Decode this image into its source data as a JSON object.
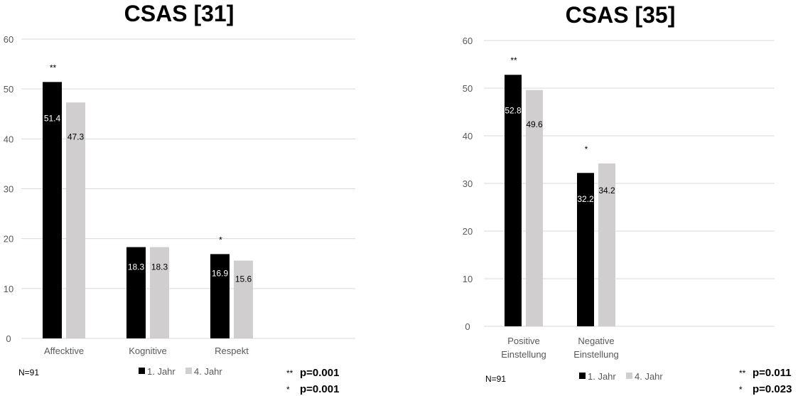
{
  "colors": {
    "year1": "#000000",
    "year4": "#d0cece",
    "grid": "#d9d9d9"
  },
  "legend": [
    "1. Jahr",
    "4. Jahr"
  ],
  "chart_data": [
    {
      "type": "bar",
      "title": "CSAS [31]",
      "categories": [
        "Affecktive",
        "Kognitive",
        "Respekt"
      ],
      "series": [
        {
          "name": "1. Jahr",
          "values": [
            51.4,
            18.3,
            16.9
          ]
        },
        {
          "name": "4. Jahr",
          "values": [
            47.3,
            18.3,
            15.6
          ]
        }
      ],
      "significance": [
        "**",
        "",
        "*"
      ],
      "ylim": [
        0,
        60
      ],
      "yticks": [
        0,
        10,
        20,
        30,
        40,
        50,
        60
      ],
      "grid": true,
      "legend_placement": "bottom",
      "note": "N=91",
      "pvalues": [
        {
          "marker": "**",
          "text": "p=0.001"
        },
        {
          "marker": "*",
          "text": "p=0.001"
        }
      ]
    },
    {
      "type": "bar",
      "title": "CSAS [35]",
      "categories": [
        [
          "Positive",
          "Einstellung"
        ],
        [
          "Negative",
          "Einstellung"
        ]
      ],
      "series": [
        {
          "name": "1. Jahr",
          "values": [
            52.8,
            32.2
          ]
        },
        {
          "name": "4. Jahr",
          "values": [
            49.6,
            34.2
          ]
        }
      ],
      "significance": [
        "**",
        "*"
      ],
      "ylim": [
        0,
        60
      ],
      "yticks": [
        0,
        10,
        20,
        30,
        40,
        50,
        60
      ],
      "grid": true,
      "legend_placement": "bottom",
      "note": "N=91",
      "pvalues": [
        {
          "marker": "**",
          "text": "p=0.011"
        },
        {
          "marker": "*",
          "text": "p=0.023"
        }
      ]
    }
  ]
}
